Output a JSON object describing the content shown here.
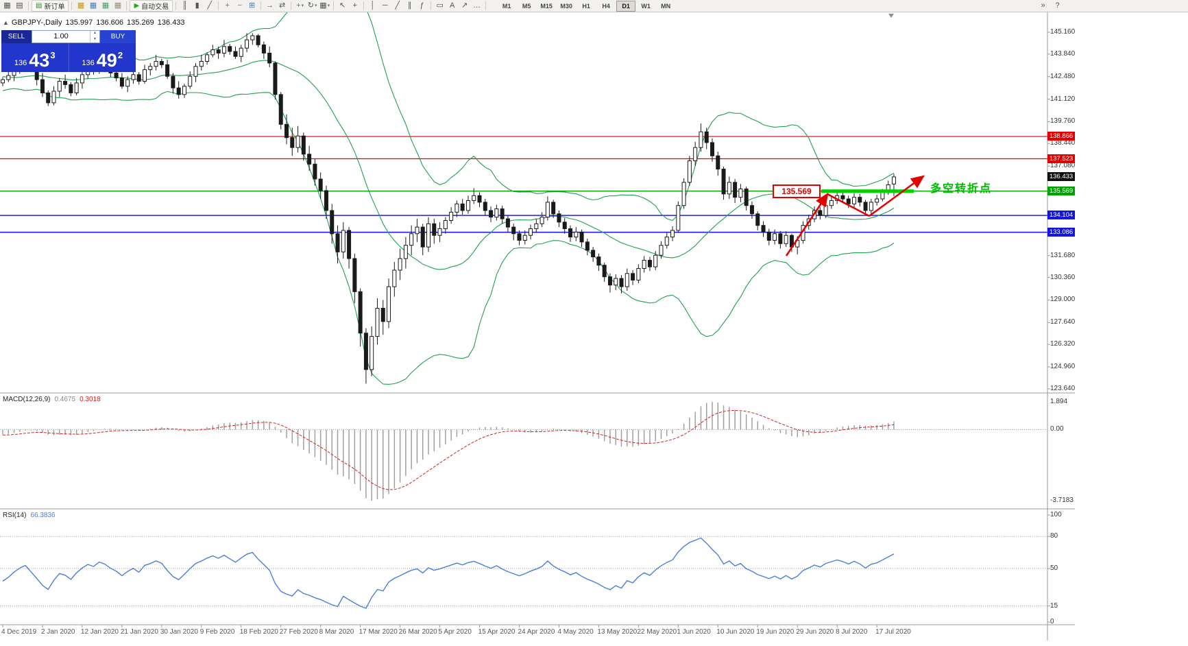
{
  "toolbar": {
    "items": [
      {
        "t": "icon",
        "n": "new-chart",
        "g": "▦"
      },
      {
        "t": "icon",
        "n": "chart-profiles",
        "g": "▤"
      },
      {
        "t": "sep"
      },
      {
        "t": "button",
        "n": "new-order",
        "g": "▤",
        "gc": "#2c8a2c",
        "label": "新订单"
      },
      {
        "t": "sep"
      },
      {
        "t": "icon",
        "n": "market-watch",
        "g": "▦",
        "c": "#c09a1a"
      },
      {
        "t": "icon",
        "n": "data-window",
        "g": "▦",
        "c": "#4f7cba"
      },
      {
        "t": "icon",
        "n": "navigator",
        "g": "▦",
        "c": "#4f9d69"
      },
      {
        "t": "icon",
        "n": "terminal",
        "g": "▦",
        "c": "#9a8f7a"
      },
      {
        "t": "sep"
      },
      {
        "t": "button",
        "n": "auto-trading",
        "g": "▶",
        "gc": "#1faa1f",
        "label": "自动交易"
      },
      {
        "t": "sep"
      },
      {
        "t": "icon",
        "n": "bar-chart",
        "g": "║"
      },
      {
        "t": "icon",
        "n": "candlestick-chart",
        "g": "▮"
      },
      {
        "t": "icon",
        "n": "line-chart",
        "g": "╱"
      },
      {
        "t": "sep"
      },
      {
        "t": "icon",
        "n": "zoom-in",
        "g": "+",
        "c": "#4f7cba"
      },
      {
        "t": "icon",
        "n": "zoom-out",
        "g": "−",
        "c": "#4f7cba"
      },
      {
        "t": "icon",
        "n": "tile-windows",
        "g": "⊞",
        "c": "#4f7cba"
      },
      {
        "t": "sep"
      },
      {
        "t": "icon",
        "n": "auto-scroll",
        "g": "→"
      },
      {
        "t": "icon",
        "n": "chart-shift",
        "g": "⇄"
      },
      {
        "t": "sep"
      },
      {
        "t": "dd",
        "n": "indicators",
        "g": "+",
        "c": "#1faa1f"
      },
      {
        "t": "dd",
        "n": "periods",
        "g": "↻"
      },
      {
        "t": "dd",
        "n": "templates",
        "g": "▦"
      },
      {
        "t": "sep"
      },
      {
        "t": "icon",
        "n": "cursor",
        "g": "↖"
      },
      {
        "t": "icon",
        "n": "crosshair",
        "g": "+"
      },
      {
        "t": "sep"
      },
      {
        "t": "icon",
        "n": "vertical-line",
        "g": "│"
      },
      {
        "t": "icon",
        "n": "horizontal-line",
        "g": "─"
      },
      {
        "t": "icon",
        "n": "trendline",
        "g": "╱"
      },
      {
        "t": "icon",
        "n": "equidistant-channel",
        "g": "∥"
      },
      {
        "t": "icon",
        "n": "fibonacci",
        "g": "ƒ"
      },
      {
        "t": "sep"
      },
      {
        "t": "icon",
        "n": "shapes",
        "g": "▭"
      },
      {
        "t": "icon",
        "n": "text-label",
        "g": "A"
      },
      {
        "t": "icon",
        "n": "arrows-tool",
        "g": "↗"
      },
      {
        "t": "icon",
        "n": "more-tools",
        "g": "…"
      },
      {
        "t": "sep"
      }
    ],
    "timeframes": {
      "items": [
        "M1",
        "M5",
        "M15",
        "M30",
        "H1",
        "H4",
        "D1",
        "W1",
        "MN"
      ],
      "active": "D1"
    },
    "right_icons": [
      {
        "n": "toolbar-options",
        "g": "»"
      },
      {
        "n": "help",
        "g": "?"
      }
    ]
  },
  "chart_header": {
    "collapse_glyph": "▲",
    "symbol_period": "GBPJPY-,Daily",
    "open": "135.997",
    "high": "136.606",
    "low": "135.269",
    "close": "136.433"
  },
  "trade_panel": {
    "sell_label": "SELL",
    "buy_label": "BUY",
    "lot_value": "1.00",
    "spin_up": "▴",
    "spin_down": "▾",
    "sell_price": {
      "prefix": "136",
      "main": "43",
      "sup": "3"
    },
    "buy_price": {
      "prefix": "136",
      "main": "49",
      "sup": "2"
    }
  },
  "price_axis": {
    "labels": [
      "145.160",
      "143.840",
      "142.480",
      "141.120",
      "139.760",
      "138.440",
      "137.080",
      "131.680",
      "130.360",
      "129.000",
      "127.640",
      "126.320",
      "124.960",
      "123.640"
    ],
    "markers": [
      {
        "value": "138.866",
        "price": 138.866,
        "color": "#e00000"
      },
      {
        "value": "137.523",
        "price": 137.523,
        "color": "#e00000"
      },
      {
        "value": "136.433",
        "price": 136.433,
        "color": "#101010"
      },
      {
        "value": "135.569",
        "price": 135.569,
        "color": "#00a000"
      },
      {
        "value": "134.104",
        "price": 134.104,
        "color": "#1414dd"
      },
      {
        "value": "133.086",
        "price": 133.086,
        "color": "#1414dd"
      }
    ]
  },
  "date_axis": {
    "labels": [
      "4 Dec 2019",
      "2 Jan 2020",
      "12 Jan 2020",
      "21 Jan 2020",
      "30 Jan 2020",
      "9 Feb 2020",
      "18 Feb 2020",
      "27 Feb 2020",
      "8 Mar 2020",
      "17 Mar 2020",
      "26 Mar 2020",
      "5 Apr 2020",
      "15 Apr 2020",
      "24 Apr 2020",
      "4 May 2020",
      "13 May 2020",
      "22 May 2020",
      "1 Jun 2020",
      "10 Jun 2020",
      "19 Jun 2020",
      "29 Jun 2020",
      "8 Jul 2020",
      "17 Jul 2020"
    ]
  },
  "main_chart": {
    "hlines": [
      {
        "price": 138.866,
        "color": "#e00000",
        "width": 1.2
      },
      {
        "price": 137.523,
        "color": "#e00000",
        "width": 1.2
      },
      {
        "price": 135.569,
        "color": "#00a000",
        "width": 1.4
      },
      {
        "price": 134.104,
        "color": "#2020e0",
        "width": 1.6
      },
      {
        "price": 133.086,
        "color": "#2020e0",
        "width": 1.6
      }
    ],
    "annotations": {
      "price_flag": "135.569",
      "turning_point": "多空转折点",
      "highlight_color": "#00d300",
      "arrow_color": "#e40000"
    }
  },
  "macd_panel": {
    "title": "MACD(12,26,9)",
    "value_main": "0.4675",
    "value_signal": "0.3018",
    "scale_max": "1.894",
    "scale_zero": "0.00",
    "scale_min": "-3.7183"
  },
  "rsi_panel": {
    "title": "RSI(14)",
    "value": "66.3836",
    "levels": [
      "100",
      "80",
      "50",
      "15",
      "0"
    ],
    "guides": [
      80,
      50,
      15
    ]
  },
  "chart_data": {
    "type": "candlestick",
    "symbol": "GBPJPY",
    "period": "Daily",
    "visible_price_range": [
      123.4,
      146.4
    ],
    "bars_per_date_label": 7,
    "indicators": [
      {
        "name": "Bollinger Bands",
        "period": 20,
        "deviation": 2,
        "color": "#20a050"
      },
      {
        "name": "MACD",
        "fast": 12,
        "slow": 26,
        "signal": 9,
        "main": 0.4675,
        "signal_value": 0.3018
      },
      {
        "name": "RSI",
        "period": 14,
        "value": 66.3836
      }
    ],
    "candles": [
      [
        142.1,
        142.45,
        141.9,
        142.3
      ],
      [
        142.3,
        142.85,
        142.15,
        142.55
      ],
      [
        142.55,
        143.1,
        142.2,
        142.9
      ],
      [
        142.9,
        143.6,
        142.65,
        143.2
      ],
      [
        143.2,
        143.55,
        143,
        143.4
      ],
      [
        143.4,
        143.7,
        142.75,
        142.9
      ],
      [
        142.9,
        143.1,
        141.95,
        142.3
      ],
      [
        142.3,
        142.7,
        141.25,
        141.5
      ],
      [
        141.5,
        141.65,
        140.7,
        140.9
      ],
      [
        140.9,
        141.9,
        140.75,
        141.6
      ],
      [
        141.6,
        142.4,
        141.25,
        142.2
      ],
      [
        142.2,
        142.6,
        141.75,
        142
      ],
      [
        142,
        142.15,
        141.3,
        141.5
      ],
      [
        141.5,
        142.4,
        141.35,
        142.1
      ],
      [
        142.1,
        142.8,
        141.75,
        142.6
      ],
      [
        142.6,
        143.4,
        142.35,
        143
      ],
      [
        143,
        143.15,
        142.6,
        142.8
      ],
      [
        142.8,
        143.6,
        142.65,
        143.3
      ],
      [
        143.3,
        143.5,
        142.75,
        143.1
      ],
      [
        143.1,
        143.5,
        142.45,
        142.7
      ],
      [
        142.7,
        142.85,
        142.2,
        142.4
      ],
      [
        142.4,
        142.7,
        141.75,
        141.9
      ],
      [
        141.9,
        142.5,
        141.55,
        142.3
      ],
      [
        142.3,
        143,
        142.05,
        142.6
      ],
      [
        142.6,
        142.75,
        142,
        142.2
      ],
      [
        142.2,
        143.2,
        142.05,
        142.9
      ],
      [
        142.9,
        143.3,
        142.55,
        143.1
      ],
      [
        143.1,
        143.8,
        142.85,
        143.4
      ],
      [
        143.4,
        143.55,
        143,
        143.2
      ],
      [
        143.2,
        143.5,
        142.35,
        142.5
      ],
      [
        142.5,
        142.7,
        141.45,
        141.8
      ],
      [
        141.8,
        142.2,
        141.15,
        141.4
      ],
      [
        141.4,
        142.05,
        141.2,
        141.9
      ],
      [
        141.9,
        142.8,
        141.75,
        142.5
      ],
      [
        142.5,
        143.3,
        142.15,
        143.1
      ],
      [
        143.1,
        143.8,
        142.85,
        143.4
      ],
      [
        143.4,
        143.95,
        143.2,
        143.8
      ],
      [
        143.8,
        144.4,
        143.65,
        144.1
      ],
      [
        144.1,
        144.3,
        143.55,
        143.9
      ],
      [
        143.9,
        144.7,
        143.65,
        144.3
      ],
      [
        144.3,
        144.45,
        143.8,
        144
      ],
      [
        144,
        144.3,
        143.55,
        143.7
      ],
      [
        143.7,
        144.4,
        143.35,
        144.2
      ],
      [
        144.2,
        145.1,
        143.95,
        144.7
      ],
      [
        144.7,
        145.1,
        144.4,
        144.95
      ],
      [
        144.95,
        145.05,
        144.25,
        144.4
      ],
      [
        144.4,
        144.6,
        143.55,
        143.9
      ],
      [
        143.9,
        144.3,
        143.05,
        143.3
      ],
      [
        143.3,
        143.4,
        141.1,
        141.4
      ],
      [
        141.4,
        141.55,
        139.3,
        139.6
      ],
      [
        139.6,
        140.2,
        138.4,
        138.8
      ],
      [
        138.8,
        139.4,
        137.7,
        138.2
      ],
      [
        138.2,
        139.5,
        137.9,
        138.9
      ],
      [
        138.9,
        139.1,
        137.4,
        137.8
      ],
      [
        137.8,
        138.3,
        136.8,
        137.2
      ],
      [
        137.2,
        137.5,
        135.9,
        136.3
      ],
      [
        136.3,
        136.7,
        135.1,
        135.6
      ],
      [
        135.6,
        135.9,
        133.9,
        134.4
      ],
      [
        134.4,
        134.8,
        132.4,
        133
      ],
      [
        133,
        133.5,
        131.2,
        131.9
      ],
      [
        131.9,
        133.7,
        131.5,
        133.2
      ],
      [
        133.2,
        133.4,
        130.9,
        131.5
      ],
      [
        131.5,
        131.8,
        128.8,
        129.5
      ],
      [
        129.5,
        129.7,
        126.2,
        127
      ],
      [
        127,
        127.3,
        123.95,
        124.8
      ],
      [
        124.8,
        127.4,
        124.4,
        126.8
      ],
      [
        126.8,
        129.1,
        126.3,
        128.5
      ],
      [
        128.5,
        129,
        126.9,
        127.7
      ],
      [
        127.7,
        130.3,
        127.3,
        129.8
      ],
      [
        129.8,
        131.3,
        129.2,
        130.8
      ],
      [
        130.8,
        132.1,
        130.2,
        131.5
      ],
      [
        131.5,
        132.8,
        130.9,
        132.3
      ],
      [
        132.3,
        133.5,
        131.7,
        133
      ],
      [
        133,
        133.9,
        132.5,
        133.4
      ],
      [
        133.4,
        133.6,
        131.7,
        132.2
      ],
      [
        132.2,
        134,
        131.9,
        133.6
      ],
      [
        133.6,
        133.9,
        132.4,
        132.9
      ],
      [
        132.9,
        133.7,
        132.5,
        133.3
      ],
      [
        133.3,
        134,
        133,
        133.8
      ],
      [
        133.8,
        134.6,
        133.6,
        134.3
      ],
      [
        134.3,
        135,
        134,
        134.8
      ],
      [
        134.8,
        135.1,
        134.15,
        134.4
      ],
      [
        134.4,
        135.3,
        134.2,
        135
      ],
      [
        135,
        135.75,
        134.8,
        135.3
      ],
      [
        135.3,
        135.5,
        134.6,
        134.9
      ],
      [
        134.9,
        135.1,
        134.1,
        134.4
      ],
      [
        134.4,
        134.65,
        133.7,
        134
      ],
      [
        134,
        134.75,
        133.8,
        134.5
      ],
      [
        134.5,
        134.7,
        133.6,
        133.9
      ],
      [
        133.9,
        134.1,
        133.1,
        133.4
      ],
      [
        133.4,
        133.6,
        132.6,
        133
      ],
      [
        133,
        133.2,
        132.3,
        132.6
      ],
      [
        132.6,
        133.2,
        132.35,
        132.9
      ],
      [
        132.9,
        133.55,
        132.65,
        133.3
      ],
      [
        133.3,
        133.9,
        133.05,
        133.6
      ],
      [
        133.6,
        134.3,
        133.4,
        134
      ],
      [
        134,
        135.25,
        133.8,
        134.9
      ],
      [
        134.9,
        135.05,
        133.95,
        134.2
      ],
      [
        134.2,
        134.4,
        133.4,
        133.7
      ],
      [
        133.7,
        133.95,
        133,
        133.3
      ],
      [
        133.3,
        133.5,
        132.5,
        132.8
      ],
      [
        132.8,
        133.4,
        132.55,
        133.1
      ],
      [
        133.1,
        133.25,
        132.2,
        132.5
      ],
      [
        132.5,
        132.7,
        131.7,
        132
      ],
      [
        132,
        132.2,
        131.3,
        131.6
      ],
      [
        131.6,
        131.8,
        130.75,
        131.1
      ],
      [
        131.1,
        131.25,
        130.1,
        130.4
      ],
      [
        130.4,
        130.6,
        129.45,
        129.9
      ],
      [
        129.9,
        130.55,
        129.6,
        130.3
      ],
      [
        130.3,
        130.5,
        129.4,
        129.8
      ],
      [
        129.8,
        130.9,
        129.55,
        130.6
      ],
      [
        130.6,
        130.8,
        129.9,
        130.2
      ],
      [
        130.2,
        131.15,
        130,
        130.9
      ],
      [
        130.9,
        131.65,
        130.65,
        131.4
      ],
      [
        131.4,
        131.6,
        130.75,
        131
      ],
      [
        131,
        131.95,
        130.8,
        131.7
      ],
      [
        131.7,
        132.55,
        131.5,
        132.3
      ],
      [
        132.3,
        133.05,
        132.1,
        132.8
      ],
      [
        132.8,
        133.45,
        132.55,
        133.2
      ],
      [
        133.2,
        134.95,
        133.05,
        134.7
      ],
      [
        134.7,
        136.35,
        134.5,
        136.1
      ],
      [
        136.1,
        137.7,
        135.9,
        137.4
      ],
      [
        137.4,
        138.55,
        137.1,
        138.2
      ],
      [
        138.2,
        139.65,
        137.95,
        139.15
      ],
      [
        139.15,
        139.4,
        138.1,
        138.5
      ],
      [
        138.5,
        138.75,
        137.35,
        137.7
      ],
      [
        137.7,
        137.95,
        136.5,
        136.9
      ],
      [
        136.9,
        137.05,
        135.05,
        135.4
      ],
      [
        135.4,
        136.45,
        135.1,
        136.1
      ],
      [
        136.1,
        136.3,
        134.85,
        135.2
      ],
      [
        135.2,
        136,
        134.9,
        135.7
      ],
      [
        135.7,
        135.85,
        134.4,
        134.7
      ],
      [
        134.7,
        134.95,
        133.9,
        134.2
      ],
      [
        134.2,
        134.35,
        133.2,
        133.5
      ],
      [
        133.5,
        133.75,
        132.8,
        133.1
      ],
      [
        133.1,
        133.3,
        132.3,
        132.6
      ],
      [
        132.6,
        133.25,
        132.35,
        133
      ],
      [
        133,
        133.15,
        132.1,
        132.4
      ],
      [
        132.4,
        133.15,
        132.2,
        132.9
      ],
      [
        132.9,
        133,
        131.9,
        132.2
      ],
      [
        132.2,
        132.85,
        131.75,
        132.6
      ],
      [
        132.6,
        133.75,
        132.4,
        133.5
      ],
      [
        133.5,
        134.15,
        133.25,
        133.9
      ],
      [
        133.9,
        134.65,
        133.7,
        134.4
      ],
      [
        134.4,
        134.6,
        133.85,
        134.1
      ],
      [
        134.1,
        134.95,
        133.95,
        134.7
      ],
      [
        134.7,
        135.3,
        134.5,
        135
      ],
      [
        135,
        135.55,
        134.8,
        135.3
      ],
      [
        135.3,
        135.5,
        134.85,
        135.1
      ],
      [
        135.1,
        135.3,
        134.55,
        134.8
      ],
      [
        134.8,
        135.45,
        134.6,
        135.2
      ],
      [
        135.2,
        135.4,
        134.65,
        134.9
      ],
      [
        134.9,
        135.05,
        134.15,
        134.4
      ],
      [
        134.4,
        135.1,
        134.2,
        134.9
      ],
      [
        134.9,
        135.35,
        134.7,
        135.1
      ],
      [
        135.1,
        135.7,
        134.95,
        135.5
      ],
      [
        135.5,
        136.2,
        135.35,
        135.95
      ],
      [
        136,
        136.61,
        135.27,
        136.43
      ]
    ]
  }
}
